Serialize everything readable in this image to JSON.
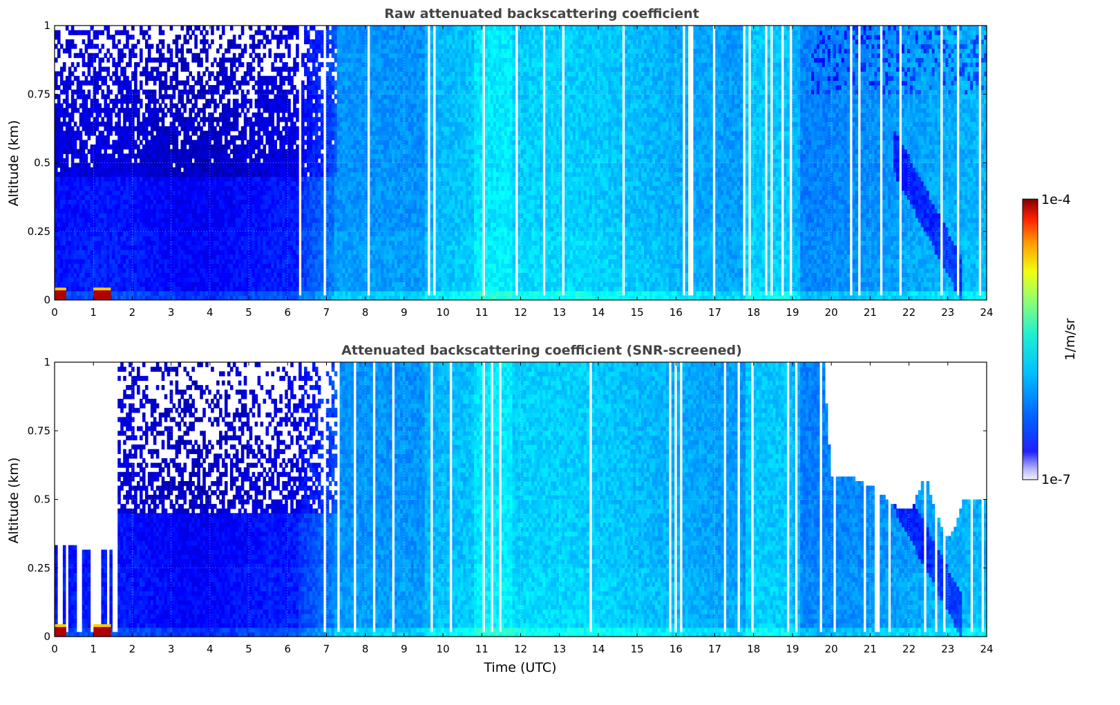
{
  "chart_data": [
    {
      "type": "heatmap",
      "title": "Raw attenuated backscattering coefficient",
      "xlabel": "",
      "ylabel": "Altitude (km)",
      "xlim": [
        0,
        24
      ],
      "ylim": [
        0,
        1
      ],
      "x_ticks": [
        "0",
        "1",
        "2",
        "3",
        "4",
        "5",
        "6",
        "7",
        "8",
        "9",
        "10",
        "11",
        "12",
        "13",
        "14",
        "15",
        "16",
        "17",
        "18",
        "19",
        "20",
        "21",
        "22",
        "23",
        "24"
      ],
      "y_ticks": [
        "0",
        "0.25",
        "0.5",
        "0.75",
        "1"
      ],
      "grid": true,
      "colormap": "jet",
      "screened": false,
      "features": {
        "noise_region_top_until_hour": 7.2,
        "noise_onset_altitude_km": 0.5,
        "strong_layer_near_surface_hours": [
          [
            0,
            0.3
          ],
          [
            1.0,
            1.45
          ]
        ],
        "descending_layer_hours": [
          21.8,
          23.2
        ],
        "dropout_hours": [
          6.35,
          6.9,
          7.0,
          9.9,
          10.2,
          11.3,
          16.5,
          17.2,
          17.4,
          17.8,
          18.0,
          18.5,
          19.0,
          19.6,
          20.3,
          21.1
        ]
      }
    },
    {
      "type": "heatmap",
      "title": "Attenuated backscattering coefficient (SNR-screened)",
      "xlabel": "Time (UTC)",
      "ylabel": "Altitude (km)",
      "xlim": [
        0,
        24
      ],
      "ylim": [
        0,
        1
      ],
      "x_ticks": [
        "0",
        "1",
        "2",
        "3",
        "4",
        "5",
        "6",
        "7",
        "8",
        "9",
        "10",
        "11",
        "12",
        "13",
        "14",
        "15",
        "16",
        "17",
        "18",
        "19",
        "20",
        "21",
        "22",
        "23",
        "24"
      ],
      "y_ticks": [
        "0",
        "0.25",
        "0.5",
        "0.75",
        "1"
      ],
      "grid": true,
      "colormap": "jet",
      "screened": true,
      "features": {
        "screened_top_profile": [
          [
            0.0,
            0.33
          ],
          [
            0.5,
            0.33
          ],
          [
            0.75,
            0.31
          ],
          [
            1.0,
            0.31
          ],
          [
            1.5,
            0.32
          ],
          [
            19.8,
            1.0
          ],
          [
            20.0,
            0.58
          ],
          [
            20.5,
            0.58
          ],
          [
            21.0,
            0.55
          ],
          [
            21.5,
            0.5
          ],
          [
            21.7,
            0.47
          ],
          [
            22.1,
            0.47
          ],
          [
            22.3,
            0.55
          ],
          [
            22.4,
            0.6
          ],
          [
            22.6,
            0.5
          ],
          [
            22.9,
            0.37
          ],
          [
            23.1,
            0.37
          ],
          [
            23.4,
            0.5
          ],
          [
            24.0,
            0.5
          ]
        ],
        "strong_layer_near_surface_hours": [
          [
            0,
            0.3
          ],
          [
            1.0,
            1.45
          ]
        ],
        "descending_layer_hours": [
          21.8,
          23.2
        ]
      }
    }
  ],
  "colorbar": {
    "label": "1/m/sr",
    "max_label": "1e-4",
    "min_label": "1e-7",
    "scale": "log",
    "range": [
      1e-07,
      0.0001
    ]
  }
}
